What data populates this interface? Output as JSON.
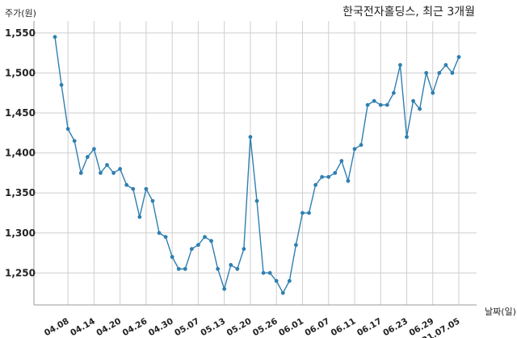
{
  "chart_data": {
    "type": "line",
    "title": "한국전자홀딩스, 최근 3개월",
    "xlabel": "날짜(일)",
    "ylabel": "주가(원)",
    "ylim": [
      1210,
      1565
    ],
    "yticks": [
      "1,550",
      "1,500",
      "1,450",
      "1,400",
      "1,350",
      "1,300",
      "1,250"
    ],
    "ytick_values": [
      1550,
      1500,
      1450,
      1400,
      1350,
      1300,
      1250
    ],
    "xtick_labels": [
      "04.08",
      "04.14",
      "04.20",
      "04.26",
      "04.30",
      "05.07",
      "05.13",
      "05.20",
      "05.26",
      "06.01",
      "06.07",
      "06.11",
      "06.17",
      "06.23",
      "06.29",
      "21.07.05"
    ],
    "xtick_index": [
      2,
      6,
      10,
      14,
      18,
      22,
      26,
      30,
      34,
      38,
      42,
      46,
      50,
      54,
      58,
      62
    ],
    "grid": true,
    "line_color": "#2f7fb0",
    "series": [
      {
        "values": [
          1545,
          1485,
          1430,
          1415,
          1375,
          1395,
          1405,
          1375,
          1385,
          1375,
          1380,
          1360,
          1355,
          1320,
          1355,
          1340,
          1300,
          1295,
          1270,
          1255,
          1255,
          1280,
          1285,
          1295,
          1290,
          1255,
          1230,
          1260,
          1255,
          1280,
          1420,
          1340,
          1250,
          1250,
          1240,
          1225,
          1240,
          1285,
          1325,
          1325,
          1360,
          1370,
          1370,
          1375,
          1390,
          1365,
          1405,
          1410,
          1460,
          1465,
          1460,
          1460,
          1475,
          1510,
          1420,
          1465,
          1455,
          1500,
          1475,
          1500,
          1510,
          1500,
          1520
        ]
      }
    ]
  }
}
